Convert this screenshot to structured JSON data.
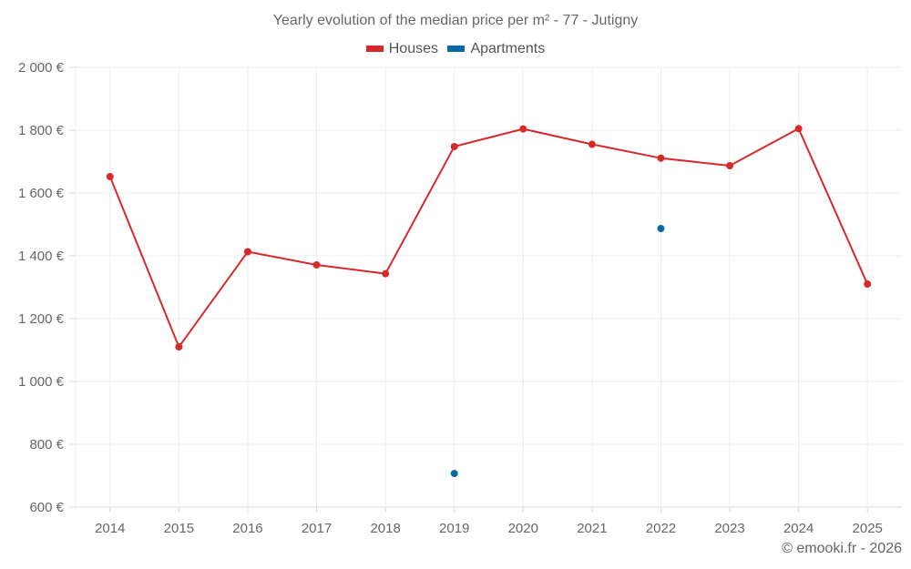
{
  "title": "Yearly evolution of the median price per m² - 77 - Jutigny",
  "legend": [
    {
      "label": "Houses",
      "color": "#d42a2a"
    },
    {
      "label": "Apartments",
      "color": "#0a6aa1"
    }
  ],
  "credit": "© emooki.fr - 2026",
  "chart_data": {
    "type": "line",
    "title": "Yearly evolution of the median price per m² - 77 - Jutigny",
    "xlabel": "",
    "ylabel": "",
    "categories": [
      "2014",
      "2015",
      "2016",
      "2017",
      "2018",
      "2019",
      "2020",
      "2021",
      "2022",
      "2023",
      "2024",
      "2025"
    ],
    "yticks": [
      "600 €",
      "800 €",
      "1 000 €",
      "1 200 €",
      "1 400 €",
      "1 600 €",
      "1 800 €",
      "2 000 €"
    ],
    "ylim": [
      600,
      2000
    ],
    "grid": true,
    "legend_position": "top",
    "series": [
      {
        "name": "Houses",
        "color": "#d42a2a",
        "type": "line",
        "values": [
          1652,
          1110,
          1413,
          1371,
          1343,
          1748,
          1804,
          1755,
          1711,
          1687,
          1805,
          1310
        ]
      },
      {
        "name": "Apartments",
        "color": "#0a6aa1",
        "type": "scatter",
        "values": [
          null,
          null,
          null,
          null,
          null,
          707,
          null,
          null,
          1487,
          null,
          null,
          null
        ]
      }
    ]
  }
}
